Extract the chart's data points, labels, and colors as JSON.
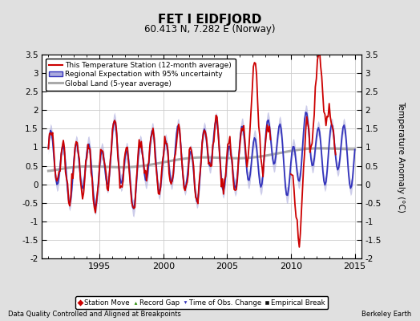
{
  "title": "FET I EIDFJORD",
  "subtitle": "60.413 N, 7.282 E (Norway)",
  "ylabel": "Temperature Anomaly (°C)",
  "xlabel_left": "Data Quality Controlled and Aligned at Breakpoints",
  "xlabel_right": "Berkeley Earth",
  "ylim": [
    -2.0,
    3.5
  ],
  "xlim": [
    1990.5,
    2015.5
  ],
  "yticks": [
    -2,
    -1.5,
    -1,
    -0.5,
    0,
    0.5,
    1,
    1.5,
    2,
    2.5,
    3,
    3.5
  ],
  "xticks": [
    1995,
    2000,
    2005,
    2010,
    2015
  ],
  "bg_color": "#e0e0e0",
  "plot_bg_color": "#ffffff",
  "grid_color": "#cccccc",
  "regional_color": "#3333bb",
  "band_color": "#aaaadd",
  "station_color": "#cc0000",
  "global_color": "#aaaaaa",
  "legend_labels": [
    "This Temperature Station (12-month average)",
    "Regional Expectation with 95% uncertainty",
    "Global Land (5-year average)"
  ],
  "marker_legend": [
    {
      "label": "Station Move",
      "color": "#cc0000",
      "marker": "D"
    },
    {
      "label": "Record Gap",
      "color": "#228800",
      "marker": "^"
    },
    {
      "label": "Time of Obs. Change",
      "color": "#3333bb",
      "marker": "v"
    },
    {
      "label": "Empirical Break",
      "color": "#111111",
      "marker": "s"
    }
  ]
}
